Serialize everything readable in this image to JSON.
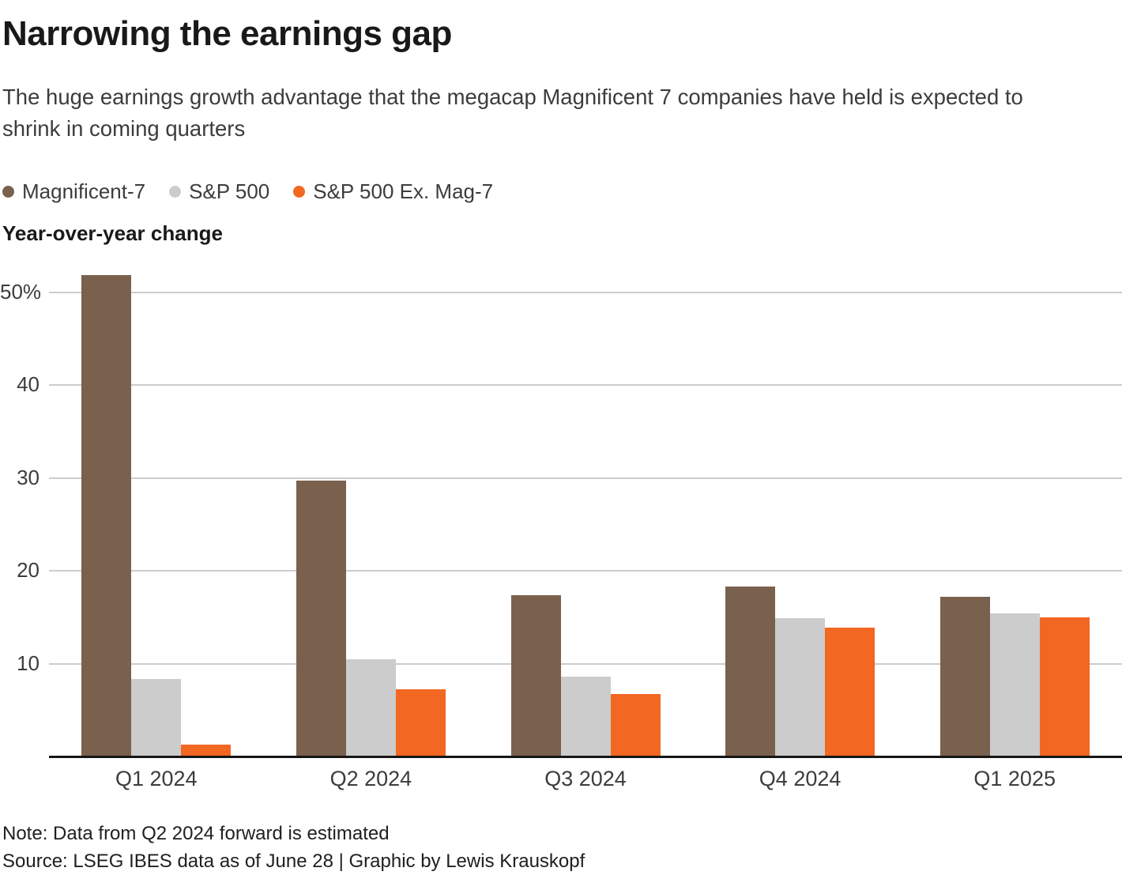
{
  "title": "Narrowing the earnings gap",
  "subtitle": "The huge earnings growth advantage that the megacap Magnificent 7 companies have held is expected to shrink in coming quarters",
  "axis_label": "Year-over-year change",
  "legend": [
    {
      "label": "Magnificent-7",
      "color": "#7A614E"
    },
    {
      "label": "S&P 500",
      "color": "#CCCCCC"
    },
    {
      "label": "S&P 500 Ex. Mag-7",
      "color": "#F26722"
    }
  ],
  "chart_data": {
    "type": "bar",
    "categories": [
      "Q1 2024",
      "Q2 2024",
      "Q3 2024",
      "Q4 2024",
      "Q1 2025"
    ],
    "series": [
      {
        "name": "Magnificent-7",
        "color": "#7A614E",
        "values": [
          51.8,
          29.7,
          17.4,
          18.3,
          17.2
        ]
      },
      {
        "name": "S&P 500",
        "color": "#CCCCCC",
        "values": [
          8.3,
          10.5,
          8.6,
          14.9,
          15.4
        ]
      },
      {
        "name": "S&P 500 Ex. Mag-7",
        "color": "#F26722",
        "values": [
          1.3,
          7.2,
          6.7,
          13.9,
          15.0
        ]
      }
    ],
    "title": "Narrowing the earnings gap",
    "xlabel": "",
    "ylabel": "Year-over-year change",
    "ylim": [
      0,
      52
    ],
    "yticks": [
      {
        "value": 50,
        "label": "50%"
      },
      {
        "value": 40,
        "label": "40"
      },
      {
        "value": 30,
        "label": "30"
      },
      {
        "value": 20,
        "label": "20"
      },
      {
        "value": 10,
        "label": "10"
      }
    ],
    "grid": true,
    "legend_position": "top-left"
  },
  "notes": {
    "note": "Note: Data from Q2 2024 forward is estimated",
    "source": "Source: LSEG IBES data as of June 28 | Graphic by Lewis Krauskopf"
  }
}
